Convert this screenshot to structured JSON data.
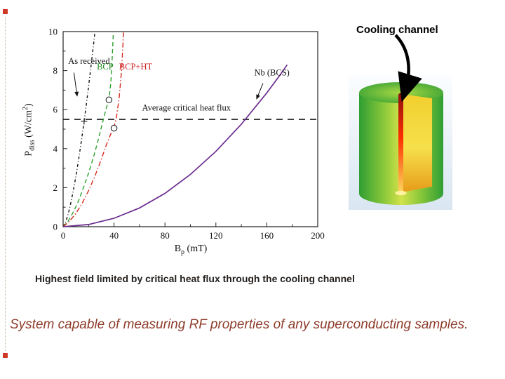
{
  "slide": {
    "accent_color": "#cf3a28",
    "caption": "Highest field limited by critical heat flux through the cooling channel",
    "footer": "System capable of measuring RF properties of any superconducting samples."
  },
  "figure3d": {
    "label": "Cooling channel",
    "colors": {
      "bg_top": "#fbfdff",
      "bg_bottom": "#d9e6f1",
      "outer_green": "#2f9e33",
      "mid_green": "#8cc93b",
      "center_yellowgreen": "#d2e24a",
      "top_highlight": "#a9d845",
      "inner_top": "#f1cf2e",
      "inner_mid": "#f6e04b",
      "inner_bottom": "#e79b1a",
      "channel_top": "#8f0f0f",
      "channel_mid": "#ff2f00",
      "channel_bottom": "#ffd95e",
      "glow": "#fff2a0",
      "arrow": "#000000"
    }
  },
  "chart_data": {
    "type": "line",
    "title": "",
    "xlabel": {
      "main": "B",
      "sub": "p",
      "end": " (mT)"
    },
    "ylabel": {
      "main": "P",
      "sub": "diss",
      "mid": " (W/cm",
      "sup": "2",
      "end": ")"
    },
    "xlim": [
      0,
      200
    ],
    "ylim": [
      0,
      10
    ],
    "xticks": [
      0,
      40,
      80,
      120,
      160,
      200
    ],
    "yticks": [
      0,
      2,
      4,
      6,
      8,
      10
    ],
    "grid": false,
    "legend_position": "inline-annotations",
    "reference_line": {
      "y": 5.5,
      "style": "dashed",
      "label": "Average critical heat flux"
    },
    "series": [
      {
        "id": "as-received",
        "name": "As received",
        "color": "#111111",
        "dash": "4 3 1 3",
        "width": 1.4,
        "x": [
          0,
          2,
          4,
          6,
          8,
          10,
          12,
          14,
          16,
          18,
          20,
          22,
          24,
          25
        ],
        "y": [
          0,
          0.24,
          0.66,
          1.21,
          1.85,
          2.58,
          3.37,
          4.24,
          5.17,
          6.15,
          7.19,
          8.28,
          9.41,
          10
        ]
      },
      {
        "id": "bcp",
        "name": "BCP",
        "color": "#2aa02a",
        "dash": "6 4",
        "width": 1.4,
        "x": [
          0,
          4,
          8,
          12,
          16,
          20,
          24,
          28,
          31,
          34,
          36,
          37.5,
          38.5,
          39.5
        ],
        "y": [
          0,
          0.3,
          0.75,
          1.3,
          2.0,
          2.75,
          3.6,
          4.55,
          5.35,
          6.1,
          6.5,
          7.4,
          8.6,
          10
        ]
      },
      {
        "id": "bcp-ht",
        "name": "BCP+HT",
        "color": "#d42a1e",
        "dash": "7 3 1.5 3",
        "width": 1.4,
        "x": [
          0,
          5,
          10,
          15,
          20,
          25,
          30,
          34,
          38,
          40,
          42,
          44,
          46,
          47.5
        ],
        "y": [
          0,
          0.28,
          0.68,
          1.2,
          1.85,
          2.6,
          3.45,
          4.2,
          4.85,
          5.1,
          5.65,
          6.6,
          8.1,
          10
        ]
      },
      {
        "id": "nb-bcs",
        "name": "Nb (BCS)",
        "color": "#6a2c8f",
        "dash": "",
        "width": 1.7,
        "x": [
          0,
          20,
          40,
          60,
          80,
          100,
          120,
          140,
          160,
          170,
          176
        ],
        "y": [
          0,
          0.11,
          0.43,
          0.96,
          1.71,
          2.68,
          3.86,
          5.25,
          6.86,
          7.74,
          8.3
        ]
      }
    ],
    "markers": [
      {
        "shape": "plus",
        "x": 16.5,
        "y": 5.4
      },
      {
        "shape": "circle",
        "x": 36,
        "y": 6.5
      },
      {
        "shape": "circle",
        "x": 40,
        "y": 5.05
      }
    ],
    "annotations": [
      {
        "id": "as-received",
        "text": "As received",
        "x": 4,
        "y": 8.35,
        "anchor": "start",
        "color": "#111111",
        "arrow": {
          "x1": 8.5,
          "y1": 7.9,
          "x2": 11,
          "y2": 6.7
        }
      },
      {
        "id": "bcp",
        "text": "BCP",
        "x": 33,
        "y": 8.05,
        "anchor": "middle",
        "color": "#1e8a1e"
      },
      {
        "id": "bcp-ht",
        "text": "BCP+HT",
        "x": 57,
        "y": 8.05,
        "anchor": "middle",
        "color": "#cc1e1e"
      },
      {
        "id": "nb-bcs",
        "text": "Nb (BCS)",
        "x": 164,
        "y": 7.75,
        "anchor": "middle",
        "color": "#111111",
        "arrow": {
          "x1": 157,
          "y1": 7.35,
          "x2": 152,
          "y2": 6.55
        }
      },
      {
        "id": "avg-flux",
        "text": "Average critical heat flux",
        "x": 62,
        "y": 5.95,
        "anchor": "start",
        "color": "#111111"
      }
    ]
  }
}
